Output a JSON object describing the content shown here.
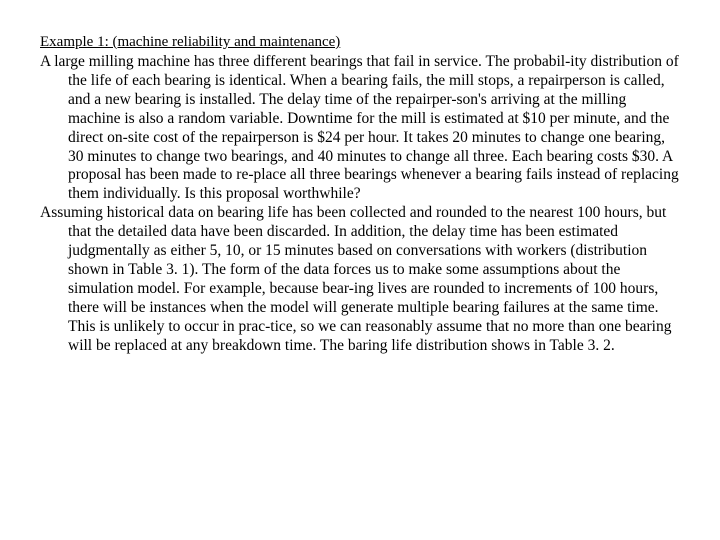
{
  "heading": "Example 1: (machine reliability and maintenance)",
  "paragraph1": "A large milling machine has three different bearings that fail in service. The probabil-ity distribution of the life of each bearing is identical. When a bearing fails, the mill stops, a repairperson is called, and a new bearing is installed. The delay time of the repairper-son's arriving at the milling machine is also a random variable. Downtime for the mill is estimated at $10 per minute, and the direct on‑site cost of the repairperson is $24 per hour. It takes 20 minutes to change one bearing, 30 minutes to change two bearings, and 40 minutes to change all three. Each bearing costs $30. A proposal has been made to re-place all three bearings whenever a bearing fails instead of replacing them individually. Is this proposal worthwhile?",
  "paragraph2": "Assuming historical data on bearing life has been collected and rounded to the nearest 100 hours, but that the detailed data have been discarded. In addition, the delay time has been estimated judgmentally as either 5, 10, or 15 minutes based on conversations with workers (distribution shown in Table 3. 1). The form of the data forces us to make some assumptions about the simulation model. For example, because bear-ing lives are rounded to increments of 100 hours, there will be instances when the model will generate multiple bearing failures at the same time. This is unlikely to occur in prac-tice, so we can reasonably assume that no more than one bearing will be replaced at any breakdown time. The baring life distribution shows in Table 3. 2."
}
